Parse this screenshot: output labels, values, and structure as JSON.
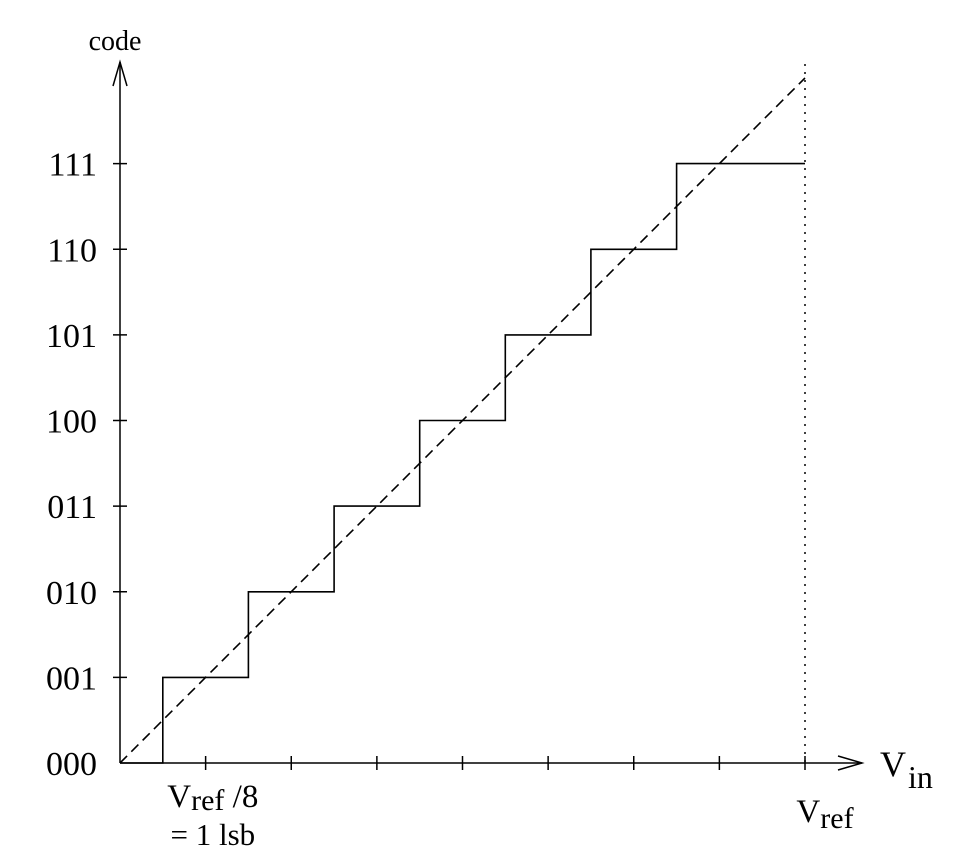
{
  "chart_data": {
    "type": "line",
    "title": "",
    "ylabel": "code",
    "xlabel_main": "V",
    "xlabel_sub": "in",
    "y_ticks": [
      "000",
      "001",
      "010",
      "011",
      "100",
      "101",
      "110",
      "111"
    ],
    "x_tick_count": 8,
    "xlim": [
      0,
      8
    ],
    "ylim": [
      0,
      8
    ],
    "x_unit_label": {
      "main": "V",
      "sub": "ref",
      "suffix": " /8",
      "line2": "= 1 lsb",
      "at": 0.5
    },
    "x_end_label": {
      "main": "V",
      "sub": "ref",
      "at": 8
    },
    "series": [
      {
        "style": "solid",
        "x": [
          0,
          0.5,
          0.5,
          1.5,
          1.5,
          2.5,
          2.5,
          3.5,
          3.5,
          4.5,
          4.5,
          5.5,
          5.5,
          6.5,
          6.5,
          8
        ],
        "y": [
          0,
          0,
          1,
          1,
          2,
          2,
          3,
          3,
          4,
          4,
          5,
          5,
          6,
          6,
          7,
          7
        ]
      },
      {
        "style": "dashed",
        "x": [
          0,
          8
        ],
        "y": [
          0,
          8
        ]
      }
    ],
    "reference_lines": [
      {
        "axis": "x",
        "value": 8,
        "style": "dotted"
      }
    ]
  }
}
